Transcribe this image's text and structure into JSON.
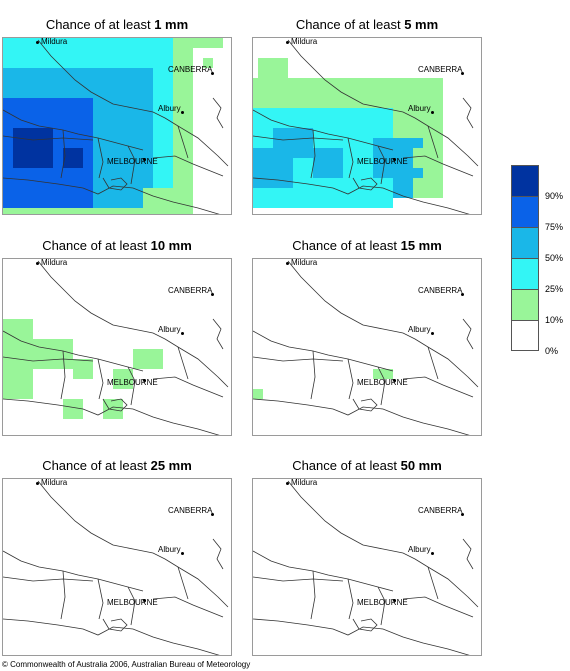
{
  "panels": [
    {
      "prefix": "Chance of at least ",
      "amount": "1 mm",
      "key": "p1"
    },
    {
      "prefix": "Chance of at least ",
      "amount": "5 mm",
      "key": "p5"
    },
    {
      "prefix": "Chance of at least ",
      "amount": "10 mm",
      "key": "p10"
    },
    {
      "prefix": "Chance of at least ",
      "amount": "15 mm",
      "key": "p15"
    },
    {
      "prefix": "Chance of at least ",
      "amount": "25 mm",
      "key": "p25"
    },
    {
      "prefix": "Chance of at least ",
      "amount": "50 mm",
      "key": "p50"
    }
  ],
  "cities": {
    "mildura": "Mildura",
    "canberra": "CANBERRA",
    "albury": "Albury",
    "melbourne": "MELBOURNE"
  },
  "legend": {
    "labels": [
      "90%",
      "75%",
      "50%",
      "25%",
      "10%",
      "0%"
    ],
    "colors": [
      "#0033a0",
      "#0a62e8",
      "#1ab7e8",
      "#33f5f5",
      "#99f599",
      "#ffffff"
    ]
  },
  "copyright": "© Commonwealth of Australia 2006, Australian Bureau of Meteorology"
}
